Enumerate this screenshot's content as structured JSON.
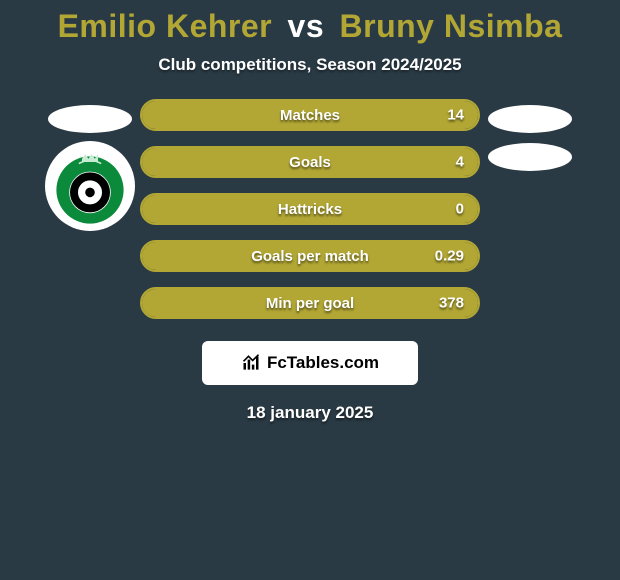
{
  "title": {
    "player1": "Emilio Kehrer",
    "vs": "vs",
    "player2": "Bruny Nsimba",
    "player1_color": "#b2a734",
    "player2_color": "#b2a734",
    "vs_color": "#ffffff"
  },
  "subtitle": "Club competitions, Season 2024/2025",
  "bars": {
    "border_color": "#b2a734",
    "fill_color": "#b2a734",
    "height": 32,
    "radius": 16,
    "items": [
      {
        "label": "Matches",
        "value": "14",
        "fill_pct": 100
      },
      {
        "label": "Goals",
        "value": "4",
        "fill_pct": 100
      },
      {
        "label": "Hattricks",
        "value": "0",
        "fill_pct": 100
      },
      {
        "label": "Goals per match",
        "value": "0.29",
        "fill_pct": 100
      },
      {
        "label": "Min per goal",
        "value": "378",
        "fill_pct": 100
      }
    ]
  },
  "background_color": "#2a3a44",
  "left_club": {
    "circle_bg": "#0a8a3a",
    "inner_ring": "#000000",
    "inner_white": "#ffffff",
    "crown_color": "#c7ebd4"
  },
  "brand": {
    "text": "FcTables.com",
    "bg": "#ffffff",
    "text_color": "#000000"
  },
  "date": "18 january 2025"
}
